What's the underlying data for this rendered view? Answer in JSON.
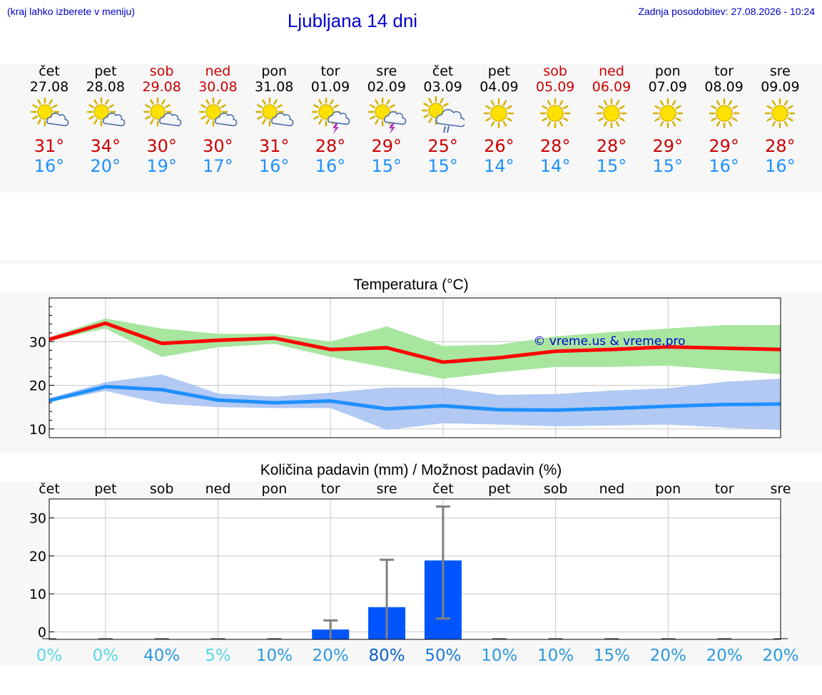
{
  "header": {
    "hint": "(kraj lahko izberete v meniju)",
    "title": "Ljubljana 14 dni",
    "updated": "Zadnja posodobitev: 27.08.2026 - 10:24"
  },
  "days": [
    {
      "name": "čet",
      "date": "27.08",
      "weekend": false,
      "icon": "sun-cloud-icon",
      "tmax": "31°",
      "tmin": "16°"
    },
    {
      "name": "pet",
      "date": "28.08",
      "weekend": false,
      "icon": "sun-cloud-icon",
      "tmax": "34°",
      "tmin": "20°"
    },
    {
      "name": "sob",
      "date": "29.08",
      "weekend": true,
      "icon": "sun-cloud-icon",
      "tmax": "30°",
      "tmin": "19°"
    },
    {
      "name": "ned",
      "date": "30.08",
      "weekend": true,
      "icon": "sun-cloud-icon",
      "tmax": "30°",
      "tmin": "17°"
    },
    {
      "name": "pon",
      "date": "31.08",
      "weekend": false,
      "icon": "sun-cloud-icon",
      "tmax": "31°",
      "tmin": "16°"
    },
    {
      "name": "tor",
      "date": "01.09",
      "weekend": false,
      "icon": "sun-storm-icon",
      "tmax": "28°",
      "tmin": "16°"
    },
    {
      "name": "sre",
      "date": "02.09",
      "weekend": false,
      "icon": "sun-storm-icon",
      "tmax": "29°",
      "tmin": "15°"
    },
    {
      "name": "čet",
      "date": "03.09",
      "weekend": false,
      "icon": "sun-rain-icon",
      "tmax": "25°",
      "tmin": "15°"
    },
    {
      "name": "pet",
      "date": "04.09",
      "weekend": false,
      "icon": "sun-icon",
      "tmax": "26°",
      "tmin": "14°"
    },
    {
      "name": "sob",
      "date": "05.09",
      "weekend": true,
      "icon": "sun-icon",
      "tmax": "28°",
      "tmin": "14°"
    },
    {
      "name": "ned",
      "date": "06.09",
      "weekend": true,
      "icon": "sun-icon",
      "tmax": "28°",
      "tmin": "15°"
    },
    {
      "name": "pon",
      "date": "07.09",
      "weekend": false,
      "icon": "sun-icon",
      "tmax": "29°",
      "tmin": "15°"
    },
    {
      "name": "tor",
      "date": "08.09",
      "weekend": false,
      "icon": "sun-icon",
      "tmax": "29°",
      "tmin": "16°"
    },
    {
      "name": "sre",
      "date": "09.09",
      "weekend": false,
      "icon": "sun-icon",
      "tmax": "28°",
      "tmin": "16°"
    }
  ],
  "colors": {
    "max": "#ff0000",
    "min": "#1e90ff",
    "max_band": "#a8e6a0",
    "min_band": "#a9c3f2",
    "precip_bar": "#0055ff",
    "error_bar": "#808080",
    "watermark": "#0000cc"
  },
  "chart_data": [
    {
      "type": "line",
      "title": "Temperatura (°C)",
      "watermark": "© vreme.us & vreme.pro",
      "ylim": [
        8,
        40
      ],
      "yticks": [
        10,
        20,
        30
      ],
      "x": [
        0,
        1,
        2,
        3,
        4,
        5,
        6,
        7,
        8,
        9,
        10,
        11,
        12,
        13
      ],
      "series": [
        {
          "values": [
            30.5,
            34.2,
            29.6,
            30.3,
            30.8,
            28.2,
            28.6,
            25.3,
            26.3,
            27.8,
            28.2,
            28.8,
            28.5,
            28.2
          ],
          "band_low": [
            30.2,
            33.0,
            26.5,
            28.7,
            29.5,
            26.5,
            24.0,
            21.5,
            23.0,
            24.2,
            24.2,
            24.5,
            23.5,
            22.5
          ],
          "band_high": [
            31.0,
            35.3,
            33.0,
            31.8,
            31.8,
            30.0,
            33.5,
            29.0,
            29.3,
            31.2,
            32.2,
            33.0,
            33.8,
            33.8
          ]
        },
        {
          "values": [
            16.5,
            19.7,
            19.0,
            16.6,
            16.0,
            16.4,
            14.6,
            15.3,
            14.4,
            14.3,
            14.7,
            15.2,
            15.6,
            15.7
          ],
          "band_low": [
            16.2,
            18.7,
            15.8,
            15.0,
            14.8,
            14.8,
            9.8,
            11.3,
            11.0,
            10.6,
            10.8,
            11.0,
            10.3,
            9.8
          ],
          "band_high": [
            17.0,
            20.7,
            22.5,
            18.1,
            17.4,
            18.3,
            19.5,
            19.5,
            17.8,
            18.0,
            18.8,
            19.3,
            20.8,
            21.5
          ]
        }
      ]
    },
    {
      "type": "bar",
      "title": "Količina padavin (mm) / Možnost padavin (%)",
      "categories": [
        "čet",
        "pet",
        "sob",
        "ned",
        "pon",
        "tor",
        "sre",
        "čet",
        "pet",
        "sob",
        "ned",
        "pon",
        "tor",
        "sre"
      ],
      "values": [
        0,
        0,
        0,
        0,
        0,
        0.6,
        6.5,
        18.8,
        0,
        0,
        0,
        0,
        0,
        0
      ],
      "error_high": [
        0,
        0,
        0,
        0,
        0,
        3,
        19,
        33,
        0,
        0,
        0,
        0,
        0,
        0
      ],
      "ylim": [
        -2,
        35
      ],
      "yticks": [
        0,
        10,
        20,
        30
      ],
      "probabilities": [
        "0%",
        "0%",
        "40%",
        "5%",
        "10%",
        "20%",
        "80%",
        "50%",
        "10%",
        "10%",
        "15%",
        "20%",
        "20%",
        "20%"
      ],
      "probability_colors": [
        "#5ad8e6",
        "#5ad8e6",
        "#2a9adf",
        "#5ad8e6",
        "#2a9adf",
        "#2a9adf",
        "#0a5fc4",
        "#1a7ad6",
        "#2a9adf",
        "#2a9adf",
        "#2a9adf",
        "#2a9adf",
        "#2a9adf",
        "#2a9adf"
      ]
    }
  ]
}
